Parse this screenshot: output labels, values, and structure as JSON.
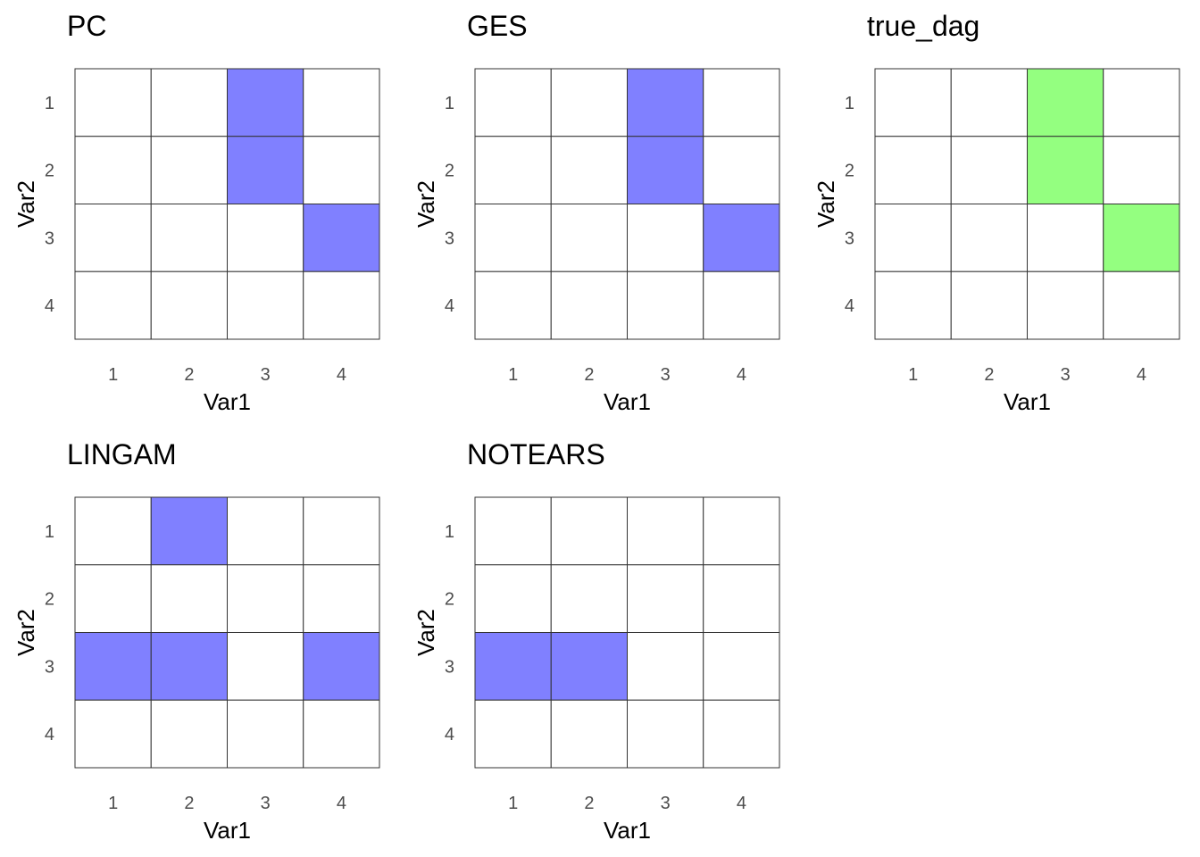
{
  "chart_data": [
    {
      "type": "heatmap",
      "title": "PC",
      "xlabel": "Var1",
      "ylabel": "Var2",
      "x_ticks": [
        "1",
        "2",
        "3",
        "4"
      ],
      "y_ticks": [
        "1",
        "2",
        "3",
        "4"
      ],
      "fill_color": "#8080ff",
      "empty_color": "#ffffff",
      "values": [
        [
          0,
          0,
          1,
          0
        ],
        [
          0,
          0,
          1,
          0
        ],
        [
          0,
          0,
          0,
          1
        ],
        [
          0,
          0,
          0,
          0
        ]
      ]
    },
    {
      "type": "heatmap",
      "title": "GES",
      "xlabel": "Var1",
      "ylabel": "Var2",
      "x_ticks": [
        "1",
        "2",
        "3",
        "4"
      ],
      "y_ticks": [
        "1",
        "2",
        "3",
        "4"
      ],
      "fill_color": "#8080ff",
      "empty_color": "#ffffff",
      "values": [
        [
          0,
          0,
          1,
          0
        ],
        [
          0,
          0,
          1,
          0
        ],
        [
          0,
          0,
          0,
          1
        ],
        [
          0,
          0,
          0,
          0
        ]
      ]
    },
    {
      "type": "heatmap",
      "title": "true_dag",
      "xlabel": "Var1",
      "ylabel": "Var2",
      "x_ticks": [
        "1",
        "2",
        "3",
        "4"
      ],
      "y_ticks": [
        "1",
        "2",
        "3",
        "4"
      ],
      "fill_color": "#94ff80",
      "empty_color": "#ffffff",
      "values": [
        [
          0,
          0,
          1,
          0
        ],
        [
          0,
          0,
          1,
          0
        ],
        [
          0,
          0,
          0,
          1
        ],
        [
          0,
          0,
          0,
          0
        ]
      ]
    },
    {
      "type": "heatmap",
      "title": "LINGAM",
      "xlabel": "Var1",
      "ylabel": "Var2",
      "x_ticks": [
        "1",
        "2",
        "3",
        "4"
      ],
      "y_ticks": [
        "1",
        "2",
        "3",
        "4"
      ],
      "fill_color": "#8080ff",
      "empty_color": "#ffffff",
      "values": [
        [
          0,
          1,
          0,
          0
        ],
        [
          0,
          0,
          0,
          0
        ],
        [
          1,
          1,
          0,
          1
        ],
        [
          0,
          0,
          0,
          0
        ]
      ]
    },
    {
      "type": "heatmap",
      "title": "NOTEARS",
      "xlabel": "Var1",
      "ylabel": "Var2",
      "x_ticks": [
        "1",
        "2",
        "3",
        "4"
      ],
      "y_ticks": [
        "1",
        "2",
        "3",
        "4"
      ],
      "fill_color": "#8080ff",
      "empty_color": "#ffffff",
      "values": [
        [
          0,
          0,
          0,
          0
        ],
        [
          0,
          0,
          0,
          0
        ],
        [
          1,
          1,
          0,
          0
        ],
        [
          0,
          0,
          0,
          0
        ]
      ]
    }
  ]
}
